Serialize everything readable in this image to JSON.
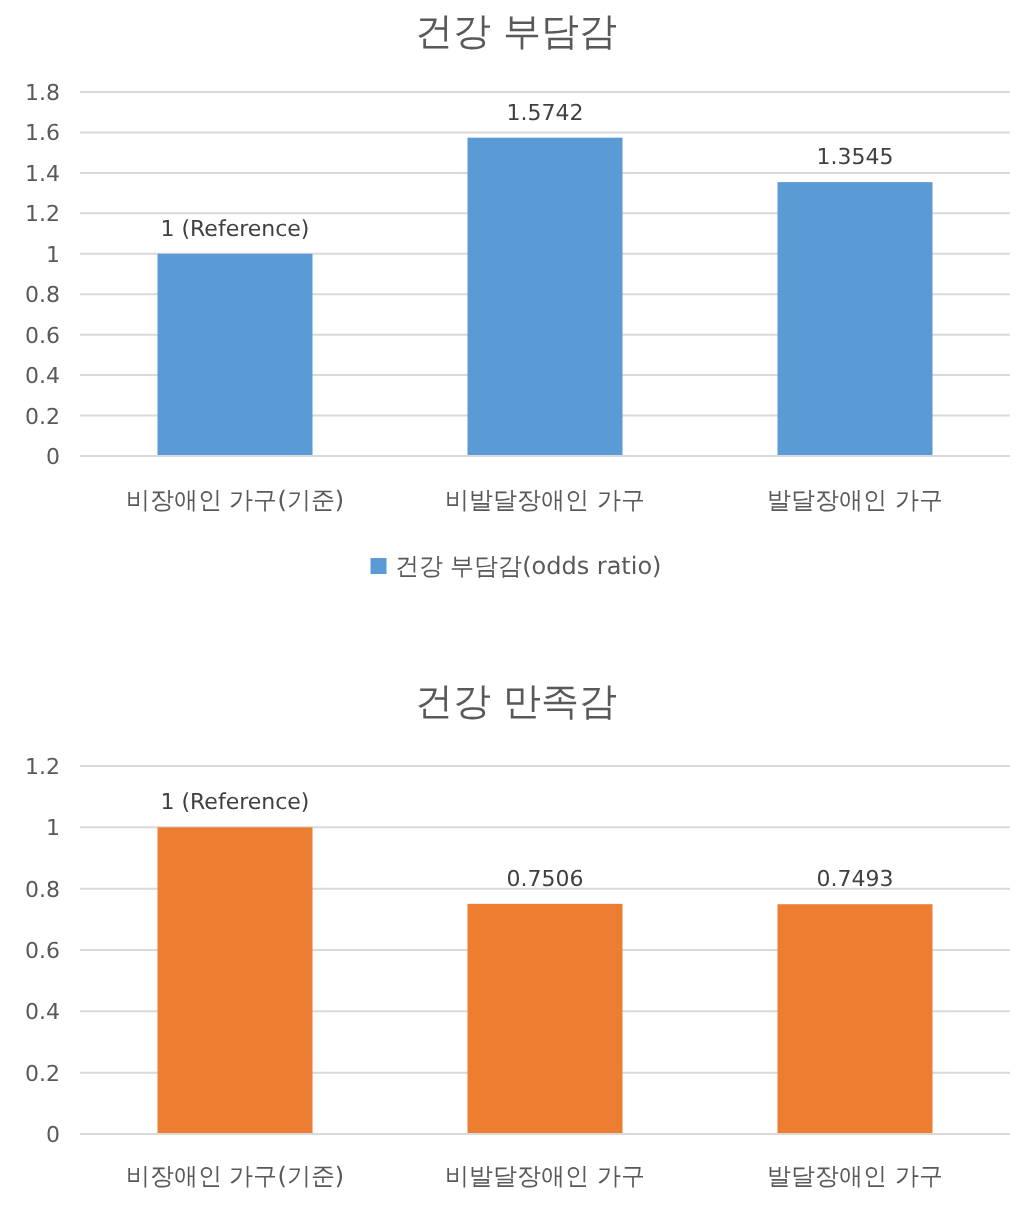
{
  "chart_data": [
    {
      "type": "bar",
      "title": "건강 부담감",
      "categories": [
        "비장애인 가구(기준)",
        "비발달장애인 가구",
        "발달장애인 가구"
      ],
      "series": [
        {
          "name": "건강 부담감(odds ratio)",
          "color": "#5b9bd5",
          "values": [
            1,
            1.5742,
            1.3545
          ],
          "value_labels": [
            "1 (Reference)",
            "1.5742",
            "1.3545"
          ]
        }
      ],
      "ylim": [
        0,
        1.8
      ],
      "yticks": [
        0,
        0.2,
        0.4,
        0.6,
        0.8,
        1,
        1.2,
        1.4,
        1.6,
        1.8
      ],
      "grid": "y",
      "legend": "bottom"
    },
    {
      "type": "bar",
      "title": "건강 만족감",
      "categories": [
        "비장애인 가구(기준)",
        "비발달장애인 가구",
        "발달장애인 가구"
      ],
      "series": [
        {
          "color": "#ed7d31",
          "values": [
            1,
            0.7506,
            0.7493
          ],
          "value_labels": [
            "1 (Reference)",
            "0.7506",
            "0.7493"
          ]
        }
      ],
      "ylim": [
        0,
        1.2
      ],
      "yticks": [
        0,
        0.2,
        0.4,
        0.6,
        0.8,
        1,
        1.2
      ],
      "grid": "y",
      "legend": false
    }
  ]
}
